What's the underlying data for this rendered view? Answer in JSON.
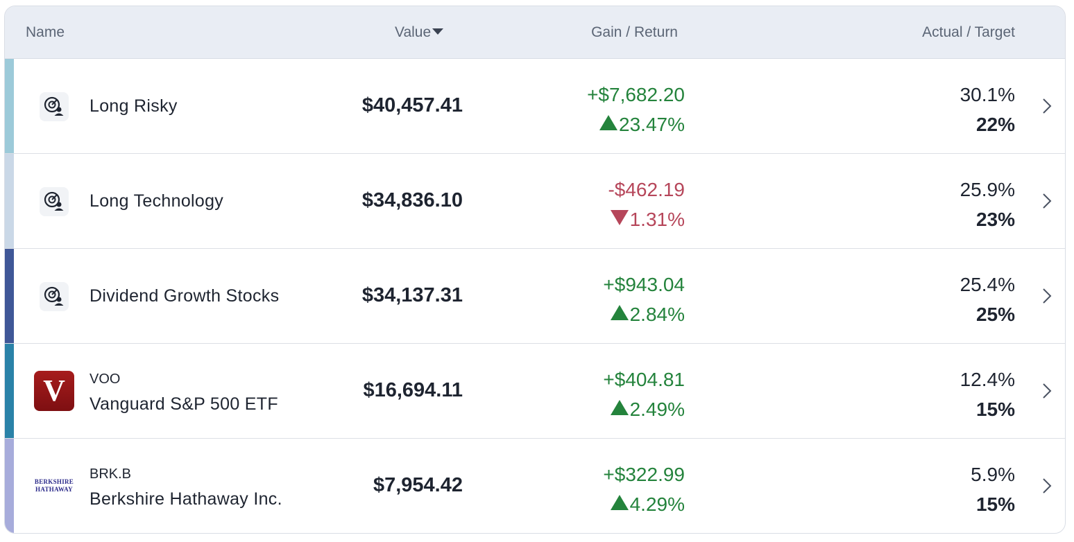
{
  "header": {
    "name": "Name",
    "value": "Value",
    "gain": "Gain / Return",
    "actual": "Actual / Target"
  },
  "colors": {
    "gain_positive": "#24833c",
    "gain_negative": "#b6465a",
    "header_bg": "#e9edf4"
  },
  "rows": [
    {
      "name": "Long Risky",
      "value": "$40,457.41",
      "gain": "+$7,682.20",
      "return": "23.47%",
      "actual": "30.1%",
      "target": "22%",
      "accent": "#9ccad9",
      "icon": "strategy-icon"
    },
    {
      "name": "Long Technology",
      "value": "$34,836.10",
      "gain": "-$462.19",
      "return": "1.31%",
      "actual": "25.9%",
      "target": "23%",
      "accent": "#cad8e7",
      "icon": "strategy-icon"
    },
    {
      "name": "Dividend Growth Stocks",
      "value": "$34,137.31",
      "gain": "+$943.04",
      "return": "2.84%",
      "actual": "25.4%",
      "target": "25%",
      "accent": "#3f5797",
      "icon": "strategy-icon"
    },
    {
      "ticker": "VOO",
      "name": "Vanguard S&P 500 ETF",
      "value": "$16,694.11",
      "gain": "+$404.81",
      "return": "2.49%",
      "actual": "12.4%",
      "target": "15%",
      "accent": "#2a82a8",
      "icon": "vanguard-logo",
      "logo_text": "V"
    },
    {
      "ticker": "BRK.B",
      "name": "Berkshire Hathaway Inc.",
      "value": "$7,954.42",
      "gain": "+$322.99",
      "return": "4.29%",
      "actual": "5.9%",
      "target": "15%",
      "accent": "#a7acdb",
      "icon": "berkshire-logo",
      "logo_line1": "BERKSHIRE",
      "logo_line2": "HATHAWAY"
    }
  ]
}
